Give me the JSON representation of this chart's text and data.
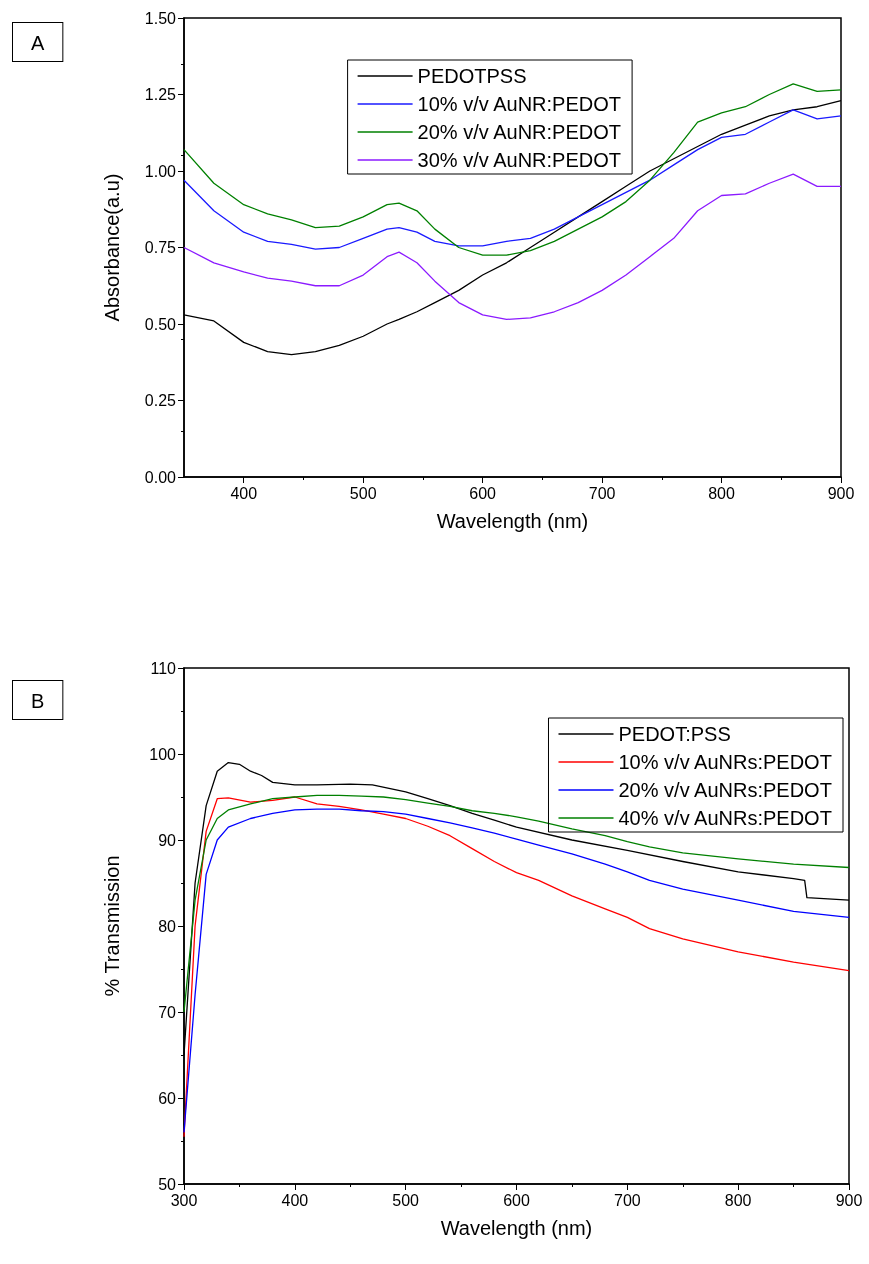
{
  "chart_data": [
    {
      "type": "line",
      "xlabel": "Wavelength (nm)",
      "ylabel": "Absorbance(a.u)",
      "annotations": [
        "A"
      ],
      "legend": "top",
      "grid": false,
      "marker": "none",
      "line_style": "solid",
      "x": [
        350,
        375,
        400,
        420,
        440,
        460,
        480,
        500,
        520,
        530,
        545,
        560,
        580,
        600,
        620,
        640,
        660,
        680,
        700,
        720,
        740,
        760,
        780,
        800,
        820,
        840,
        860,
        880,
        900
      ],
      "xlim": [
        350,
        900
      ],
      "xticks": [
        400,
        500,
        600,
        700,
        800,
        900
      ],
      "ylim": [
        0,
        1.5
      ],
      "yticks": [
        {
          "value": 0,
          "label": "0.00"
        },
        {
          "value": 0.25,
          "label": "0.25"
        },
        {
          "value": 0.5,
          "label": "0.50"
        },
        {
          "value": 0.75,
          "label": "0.75"
        },
        {
          "value": 1,
          "label": "1.00"
        },
        {
          "value": 1.25,
          "label": "1.25"
        },
        {
          "value": 1.5,
          "label": "1.50"
        }
      ],
      "series": [
        {
          "name": "PEDOTPSS",
          "color": "#000000",
          "values": [
            0.53,
            0.51,
            0.44,
            0.41,
            0.4,
            0.41,
            0.43,
            0.46,
            0.5,
            0.515,
            0.54,
            0.57,
            0.61,
            0.66,
            0.7,
            0.75,
            0.8,
            0.85,
            0.9,
            0.95,
            1.0,
            1.04,
            1.08,
            1.12,
            1.15,
            1.18,
            1.2,
            1.21,
            1.23
          ]
        },
        {
          "name": "10% v/v AuNR:PEDOT",
          "color": "#1a1aff",
          "values": [
            0.97,
            0.87,
            0.8,
            0.77,
            0.76,
            0.745,
            0.75,
            0.78,
            0.81,
            0.815,
            0.8,
            0.77,
            0.755,
            0.755,
            0.77,
            0.78,
            0.81,
            0.85,
            0.89,
            0.93,
            0.97,
            1.02,
            1.07,
            1.11,
            1.12,
            1.16,
            1.2,
            1.17,
            1.18
          ]
        },
        {
          "name": "20% v/v AuNR:PEDOT",
          "color": "#008000",
          "values": [
            1.07,
            0.96,
            0.89,
            0.86,
            0.84,
            0.815,
            0.82,
            0.85,
            0.89,
            0.895,
            0.87,
            0.81,
            0.75,
            0.725,
            0.725,
            0.74,
            0.77,
            0.81,
            0.85,
            0.9,
            0.97,
            1.06,
            1.16,
            1.19,
            1.21,
            1.25,
            1.285,
            1.26,
            1.265
          ]
        },
        {
          "name": "30% v/v AuNR:PEDOT",
          "color": "#8b1aff",
          "values": [
            0.75,
            0.7,
            0.67,
            0.65,
            0.64,
            0.625,
            0.625,
            0.66,
            0.72,
            0.735,
            0.7,
            0.64,
            0.57,
            0.53,
            0.515,
            0.52,
            0.54,
            0.57,
            0.61,
            0.66,
            0.72,
            0.78,
            0.87,
            0.92,
            0.925,
            0.96,
            0.99,
            0.95,
            0.95
          ]
        }
      ]
    },
    {
      "type": "line",
      "xlabel": "Wavelength (nm)",
      "ylabel": "% Transmission",
      "annotations": [
        "B"
      ],
      "legend": "top right",
      "grid": false,
      "marker": "none",
      "line_style": "solid",
      "xlim": [
        300,
        900
      ],
      "xticks": [
        300,
        400,
        500,
        600,
        700,
        800,
        900
      ],
      "ylim": [
        50,
        110
      ],
      "yticks": [
        50,
        60,
        70,
        80,
        90,
        100,
        110
      ],
      "series": [
        {
          "name": "PEDOT:PSS",
          "color": "#000000",
          "x": [
            300,
            310,
            320,
            330,
            340,
            350,
            360,
            370,
            380,
            400,
            420,
            450,
            470,
            500,
            520,
            540,
            560,
            580,
            600,
            650,
            700,
            750,
            800,
            850,
            860,
            862,
            900
          ],
          "values": [
            65,
            85,
            94,
            98,
            99,
            98.8,
            98,
            97.5,
            96.7,
            96.4,
            96.4,
            96.5,
            96.4,
            95.6,
            94.8,
            94,
            93.1,
            92.3,
            91.5,
            90,
            88.8,
            87.5,
            86.3,
            85.5,
            85.3,
            83.3,
            83
          ]
        },
        {
          "name": "10% v/v AuNRs:PEDOT",
          "color": "#ff0000",
          "x": [
            300,
            310,
            320,
            330,
            340,
            360,
            380,
            400,
            420,
            440,
            460,
            480,
            500,
            520,
            540,
            560,
            580,
            600,
            620,
            650,
            680,
            700,
            720,
            750,
            800,
            850,
            900
          ],
          "values": [
            55.5,
            80,
            91,
            94.8,
            94.9,
            94.4,
            94.6,
            95,
            94.2,
            93.9,
            93.5,
            93,
            92.5,
            91.6,
            90.5,
            89,
            87.5,
            86.2,
            85.3,
            83.5,
            82,
            81,
            79.7,
            78.5,
            77,
            75.8,
            74.8
          ]
        },
        {
          "name": "20% v/v AuNRs:PEDOT",
          "color": "#0000ff",
          "x": [
            300,
            310,
            320,
            330,
            340,
            360,
            380,
            400,
            420,
            440,
            460,
            480,
            500,
            520,
            540,
            560,
            580,
            600,
            620,
            650,
            680,
            700,
            720,
            750,
            800,
            850,
            900
          ],
          "values": [
            56,
            72,
            86,
            90,
            91.5,
            92.5,
            93.1,
            93.5,
            93.6,
            93.6,
            93.4,
            93.3,
            93,
            92.5,
            92,
            91.4,
            90.8,
            90.1,
            89.4,
            88.4,
            87.2,
            86.3,
            85.3,
            84.3,
            83,
            81.7,
            81
          ]
        },
        {
          "name": "40% v/v AuNRs:PEDOT",
          "color": "#008000",
          "x": [
            300,
            310,
            320,
            330,
            340,
            360,
            380,
            400,
            420,
            440,
            460,
            480,
            500,
            520,
            540,
            560,
            580,
            600,
            620,
            650,
            680,
            700,
            720,
            750,
            800,
            850,
            900
          ],
          "values": [
            70,
            83,
            90,
            92.5,
            93.5,
            94.2,
            94.8,
            95,
            95.2,
            95.2,
            95.1,
            95,
            94.7,
            94.3,
            93.9,
            93.4,
            93.1,
            92.7,
            92.2,
            91.3,
            90.5,
            89.8,
            89.2,
            88.5,
            87.8,
            87.2,
            86.8
          ]
        }
      ]
    }
  ]
}
